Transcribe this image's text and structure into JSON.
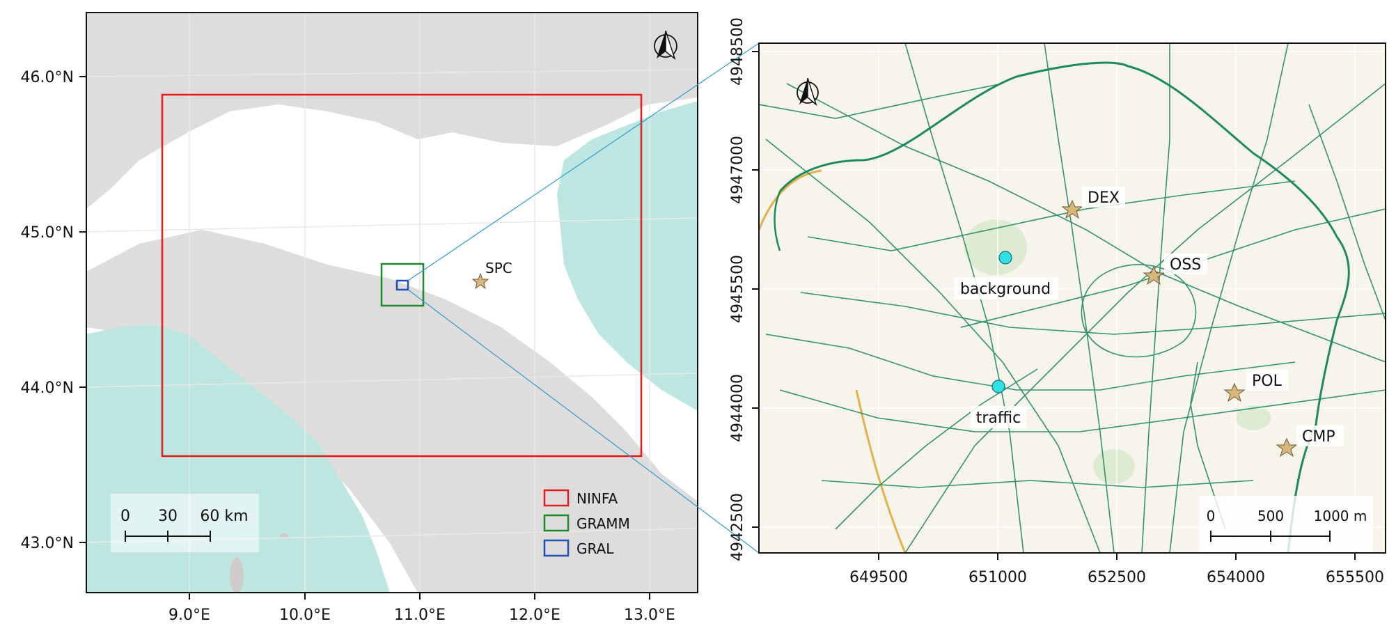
{
  "left_map": {
    "lat_ticks": [
      "46.0°N",
      "45.0°N",
      "44.0°N",
      "43.0°N"
    ],
    "lon_ticks": [
      "9.0°E",
      "10.0°E",
      "11.0°E",
      "12.0°E",
      "13.0°E"
    ],
    "station": "SPC",
    "legend": [
      {
        "label": "NINFA",
        "color": "#e31a1c"
      },
      {
        "label": "GRAMM",
        "color": "#1a8a2e"
      },
      {
        "label": "GRAL",
        "color": "#1f4fb4"
      }
    ],
    "scale": {
      "ticks": [
        "0",
        "30",
        "60 km"
      ]
    },
    "north_arrow": "north-arrow-icon",
    "colors": {
      "sea": "#bde6e0",
      "land": "#ffffff",
      "relief": "#d9d6d6"
    }
  },
  "right_map": {
    "y_ticks": [
      "4948500",
      "4947000",
      "4945500",
      "4944000",
      "4942500"
    ],
    "x_ticks": [
      "649500",
      "651000",
      "652500",
      "654000",
      "655500"
    ],
    "stations": [
      {
        "label": "DEX",
        "kind": "star"
      },
      {
        "label": "OSS",
        "kind": "star"
      },
      {
        "label": "POL",
        "kind": "star"
      },
      {
        "label": "CMP",
        "kind": "star"
      },
      {
        "label": "background",
        "kind": "circle"
      },
      {
        "label": "traffic",
        "kind": "circle"
      }
    ],
    "scale": {
      "ticks": [
        "0",
        "500",
        "1000 m"
      ]
    },
    "north_arrow": "north-arrow-icon",
    "colors": {
      "background": "#f7f4ec",
      "roads": "#1c8a5a",
      "motorway": "#e0b24a",
      "star": "#d8b77a",
      "circle": "#2fe0e6"
    }
  }
}
